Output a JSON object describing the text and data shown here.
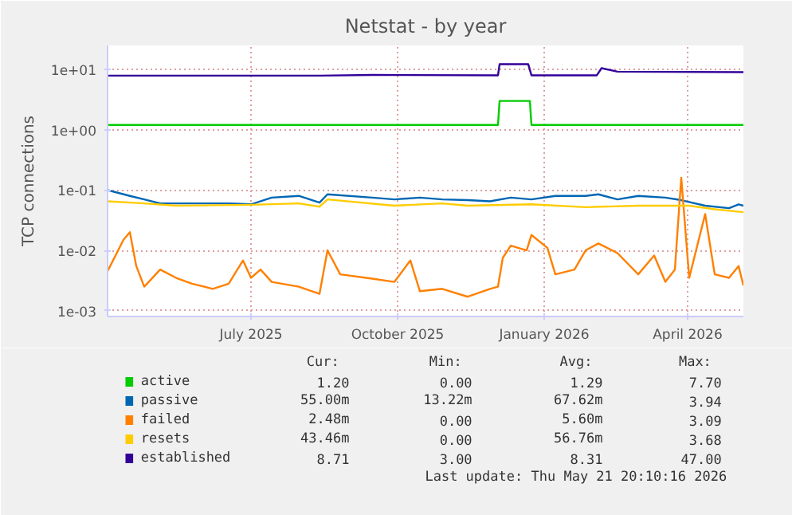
{
  "chart_data": {
    "type": "line",
    "title": "Netstat - by year",
    "ylabel": "TCP connections",
    "log": true,
    "grid": true,
    "legend": "bottom",
    "xlim": [
      "2025-04-02",
      "2026-05-06"
    ],
    "xticks": [
      {
        "value": "2025-07-01",
        "label": "July 2025"
      },
      {
        "value": "2025-10-01",
        "label": "October 2025"
      },
      {
        "value": "2026-01-01",
        "label": "January 2026"
      },
      {
        "value": "2026-04-01",
        "label": "April 2026"
      }
    ],
    "ylim": [
      0.0008,
      25
    ],
    "yticks": [
      {
        "value": 0.001,
        "label": "1e-03"
      },
      {
        "value": 0.01,
        "label": "1e-02"
      },
      {
        "value": 0.1,
        "label": "1e-01"
      },
      {
        "value": 1,
        "label": "1e+00"
      },
      {
        "value": 10,
        "label": "1e+01"
      }
    ],
    "series": [
      {
        "name": "active",
        "color": "#00cc00",
        "x": [
          "2025-04-02",
          "2025-12-03",
          "2025-12-04",
          "2025-12-23",
          "2025-12-24",
          "2026-05-06"
        ],
        "values": [
          1.2,
          1.2,
          3.0,
          3.0,
          1.2,
          1.2
        ]
      },
      {
        "name": "passive",
        "color": "#0066b3",
        "x": [
          "2025-04-02",
          "2025-04-16",
          "2025-04-25",
          "2025-05-05",
          "2025-05-25",
          "2025-06-17",
          "2025-07-01",
          "2025-07-14",
          "2025-07-31",
          "2025-08-13",
          "2025-08-18",
          "2025-09-15",
          "2025-09-29",
          "2025-10-15",
          "2025-10-29",
          "2025-11-14",
          "2025-11-28",
          "2025-12-11",
          "2025-12-24",
          "2026-01-08",
          "2026-01-27",
          "2026-02-04",
          "2026-02-16",
          "2026-03-01",
          "2026-03-18",
          "2026-03-28",
          "2026-04-12",
          "2026-04-27",
          "2026-05-03",
          "2026-05-06"
        ],
        "values": [
          0.1,
          0.08,
          0.07,
          0.06,
          0.06,
          0.06,
          0.058,
          0.075,
          0.08,
          0.062,
          0.085,
          0.075,
          0.07,
          0.075,
          0.07,
          0.068,
          0.065,
          0.075,
          0.07,
          0.08,
          0.08,
          0.085,
          0.07,
          0.08,
          0.075,
          0.068,
          0.055,
          0.05,
          0.058,
          0.055
        ]
      },
      {
        "name": "failed",
        "color": "#ff8000",
        "x": [
          "2025-04-02",
          "2025-04-12",
          "2025-04-16",
          "2025-04-20",
          "2025-04-25",
          "2025-05-05",
          "2025-05-15",
          "2025-05-25",
          "2025-06-07",
          "2025-06-17",
          "2025-06-26",
          "2025-07-01",
          "2025-07-07",
          "2025-07-14",
          "2025-07-31",
          "2025-08-13",
          "2025-08-18",
          "2025-08-26",
          "2025-09-15",
          "2025-09-29",
          "2025-10-09",
          "2025-10-15",
          "2025-10-29",
          "2025-11-14",
          "2025-11-28",
          "2025-12-03",
          "2025-12-06",
          "2025-12-11",
          "2025-12-21",
          "2025-12-24",
          "2026-01-03",
          "2026-01-08",
          "2026-01-20",
          "2026-01-27",
          "2026-02-04",
          "2026-02-16",
          "2026-03-01",
          "2026-03-11",
          "2026-03-18",
          "2026-03-24",
          "2026-03-28",
          "2026-04-02",
          "2026-04-12",
          "2026-04-18",
          "2026-04-27",
          "2026-05-03",
          "2026-05-06"
        ],
        "values": [
          0.0045,
          0.015,
          0.02,
          0.0055,
          0.0025,
          0.0048,
          0.0035,
          0.0028,
          0.0023,
          0.0028,
          0.0068,
          0.0035,
          0.0048,
          0.003,
          0.0025,
          0.0019,
          0.01,
          0.004,
          0.0034,
          0.003,
          0.0068,
          0.0021,
          0.0023,
          0.0017,
          0.0023,
          0.0025,
          0.0075,
          0.012,
          0.01,
          0.018,
          0.011,
          0.004,
          0.0048,
          0.01,
          0.013,
          0.009,
          0.004,
          0.0082,
          0.003,
          0.0048,
          0.16,
          0.0035,
          0.04,
          0.004,
          0.0035,
          0.0055,
          0.0026
        ]
      },
      {
        "name": "resets",
        "color": "#ffcc00",
        "x": [
          "2025-04-02",
          "2025-04-25",
          "2025-05-15",
          "2025-07-01",
          "2025-07-31",
          "2025-08-13",
          "2025-08-18",
          "2025-09-29",
          "2025-10-29",
          "2025-11-14",
          "2025-12-24",
          "2026-01-27",
          "2026-03-01",
          "2026-04-02",
          "2026-04-18",
          "2026-05-06"
        ],
        "values": [
          0.065,
          0.06,
          0.055,
          0.057,
          0.06,
          0.053,
          0.07,
          0.055,
          0.06,
          0.055,
          0.058,
          0.052,
          0.055,
          0.055,
          0.048,
          0.043
        ]
      },
      {
        "name": "established",
        "color": "#330099",
        "x": [
          "2025-04-02",
          "2025-08-13",
          "2025-09-15",
          "2025-12-03",
          "2025-12-04",
          "2025-12-22",
          "2025-12-24",
          "2026-02-03",
          "2026-02-06",
          "2026-02-16",
          "2026-05-06"
        ],
        "values": [
          7.9,
          7.9,
          8.1,
          8.0,
          12.2,
          12.2,
          8.0,
          8.0,
          10.5,
          9.2,
          9.0
        ]
      }
    ],
    "annotations": [
      "Cur:",
      "Min:",
      "Avg:",
      "Max:",
      "1.20",
      "0.00",
      "1.29",
      "7.70",
      "55.00m",
      "13.22m",
      "67.62m",
      "3.94",
      "2.48m",
      "0.00",
      "5.60m",
      "3.09",
      "43.46m",
      "0.00",
      "56.76m",
      "3.68",
      "8.71",
      "3.00",
      "8.31",
      "47.00",
      "Last update: Thu May 21 20:10:16 2026"
    ]
  }
}
